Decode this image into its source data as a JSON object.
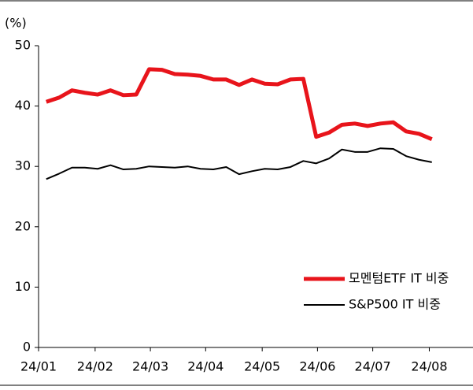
{
  "chart_data": {
    "type": "line",
    "y_unit_label": "(%)",
    "x": [
      0,
      1,
      2,
      3,
      4,
      5,
      6,
      7,
      8,
      9,
      10,
      11,
      12,
      13,
      14,
      15,
      16,
      17,
      18,
      19,
      20,
      21,
      22,
      23,
      24,
      25,
      26,
      27,
      28,
      29,
      30
    ],
    "xlim": [
      -0.6,
      33.2
    ],
    "xticks": [
      {
        "value": -0.6,
        "label": "24/01"
      },
      {
        "value": 3.8,
        "label": "24/02"
      },
      {
        "value": 8.1,
        "label": "24/03"
      },
      {
        "value": 12.4,
        "label": "24/04"
      },
      {
        "value": 16.8,
        "label": "24/05"
      },
      {
        "value": 21.1,
        "label": "24/06"
      },
      {
        "value": 25.4,
        "label": "24/07"
      },
      {
        "value": 29.8,
        "label": "24/08"
      }
    ],
    "ylim": [
      0,
      50
    ],
    "yticks": [
      0,
      10,
      20,
      30,
      40,
      50
    ],
    "legend": "lower right",
    "series": [
      {
        "name": "모멘텀ETF IT 비중",
        "color": "#e8141b",
        "width": 5,
        "values": [
          40.7,
          41.4,
          42.6,
          42.2,
          41.9,
          42.6,
          41.8,
          41.9,
          46.1,
          46.0,
          45.3,
          45.2,
          45.0,
          44.4,
          44.4,
          43.5,
          44.4,
          43.7,
          43.6,
          44.4,
          44.5,
          34.9,
          35.6,
          36.9,
          37.1,
          36.7,
          37.1,
          37.3,
          35.8,
          35.4,
          34.5
        ]
      },
      {
        "name": "S&P500 IT 비중",
        "color": "#000000",
        "width": 2,
        "values": [
          27.9,
          28.8,
          29.8,
          29.8,
          29.6,
          30.2,
          29.5,
          29.6,
          30.0,
          29.9,
          29.8,
          30.0,
          29.6,
          29.5,
          29.9,
          28.7,
          29.2,
          29.6,
          29.5,
          29.9,
          30.9,
          30.5,
          31.3,
          32.8,
          32.4,
          32.4,
          33.0,
          32.9,
          31.7,
          31.1,
          30.7
        ]
      }
    ]
  }
}
